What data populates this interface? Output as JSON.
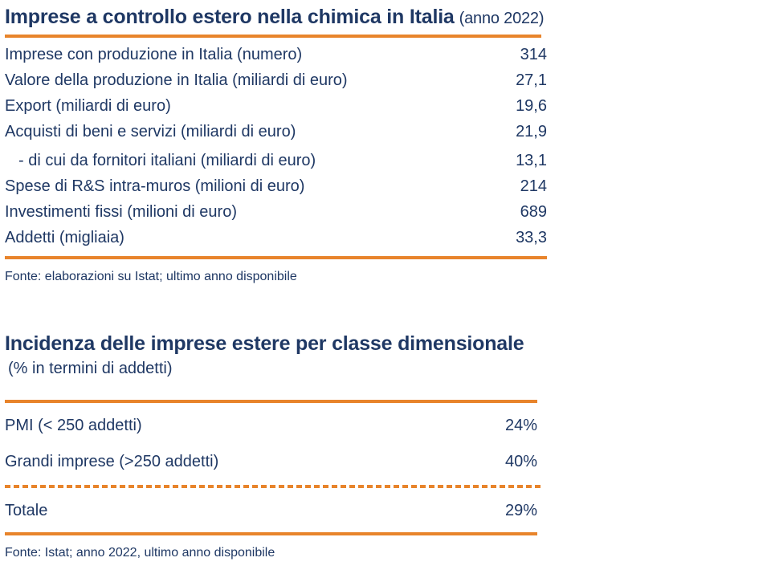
{
  "theme": {
    "text_color": "#1F3864",
    "accent_color": "#E8842B",
    "background": "#ffffff"
  },
  "table1": {
    "title": "Imprese a controllo estero nella chimica in Italia",
    "title_suffix": "(anno 2022)",
    "rows": [
      {
        "label": "Imprese con produzione in Italia (numero)",
        "value": "314"
      },
      {
        "label": "Valore della produzione in Italia (miliardi di euro)",
        "value": "27,1"
      },
      {
        "label": "Export (miliardi di euro)",
        "value": "19,6"
      },
      {
        "label": "Acquisti di beni e servizi (miliardi di euro)",
        "value": "21,9"
      },
      {
        "label": "- di cui da fornitori italiani (miliardi di euro)",
        "value": "13,1"
      },
      {
        "label": "Spese di R&S intra-muros (milioni di euro)",
        "value": "214"
      },
      {
        "label": "Investimenti fissi (milioni di euro)",
        "value": "689"
      },
      {
        "label": "Addetti (migliaia)",
        "value": "33,3"
      }
    ],
    "source": "Fonte: elaborazioni su Istat; ultimo anno disponibile"
  },
  "table2": {
    "title": "Incidenza delle imprese estere per classe dimensionale",
    "subtitle": "(% in termini di addetti)",
    "rows": [
      {
        "label": "PMI (< 250 addetti)",
        "value": "24%"
      },
      {
        "label": "Grandi imprese (>250 addetti)",
        "value": "40%"
      }
    ],
    "total_row": {
      "label": "Totale",
      "value": "29%"
    },
    "source": "Fonte: Istat; anno 2022, ultimo anno disponibile"
  }
}
